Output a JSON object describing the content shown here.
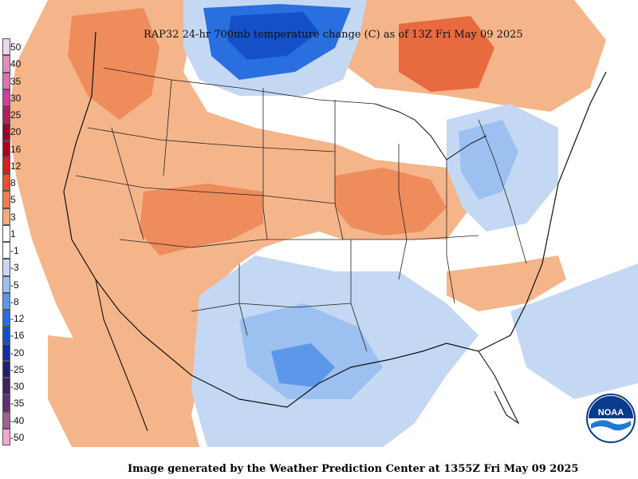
{
  "title": "RAP32 24-hr 700mb temperature change (C) as of 13Z Fri May 09 2025",
  "footer": "Image generated by the Weather Prediction Center at 1355Z Fri May 09 2025",
  "logo_text": "NOAA",
  "legend": {
    "items": [
      {
        "label": "50",
        "color": "#e8d8ec"
      },
      {
        "label": "40",
        "color": "#e090c0"
      },
      {
        "label": "35",
        "color": "#e070b0"
      },
      {
        "label": "30",
        "color": "#d0409a"
      },
      {
        "label": "25",
        "color": "#b02060"
      },
      {
        "label": "20",
        "color": "#900030"
      },
      {
        "label": "16",
        "color": "#b00020"
      },
      {
        "label": "12",
        "color": "#d82020"
      },
      {
        "label": "8",
        "color": "#e85030"
      },
      {
        "label": "5",
        "color": "#ee7c50"
      },
      {
        "label": "3",
        "color": "#f5a878"
      },
      {
        "label": "1",
        "color": "#ffffff"
      },
      {
        "label": "-1",
        "color": "#ffffff"
      },
      {
        "label": "-3",
        "color": "#c4d8f4"
      },
      {
        "label": "-5",
        "color": "#9cc0f0"
      },
      {
        "label": "-8",
        "color": "#5c98ea"
      },
      {
        "label": "-12",
        "color": "#2a6fe0"
      },
      {
        "label": "-16",
        "color": "#1450c8"
      },
      {
        "label": "-20",
        "color": "#1030a0"
      },
      {
        "label": "-25",
        "color": "#202070"
      },
      {
        "label": "-30",
        "color": "#402060"
      },
      {
        "label": "-35",
        "color": "#603070"
      },
      {
        "label": "-40",
        "color": "#a06090"
      },
      {
        "label": "-50",
        "color": "#f0a8d0"
      }
    ]
  },
  "colors": {
    "warm_light": "#f5b58a",
    "warm_mid": "#ee8c5c",
    "warm_dark": "#e86a40",
    "cool_light": "#c4d8f4",
    "cool_mid": "#9cc0f0",
    "cool_dark": "#2a6fe0",
    "cool_darker": "#1450c8",
    "background": "#ffffff"
  }
}
